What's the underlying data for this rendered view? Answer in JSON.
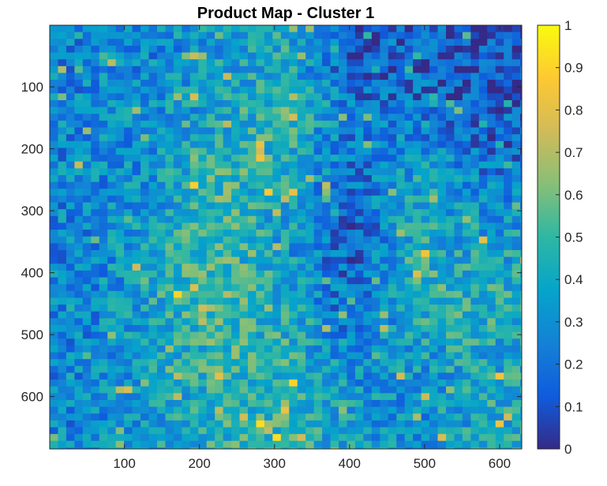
{
  "chart_data": {
    "type": "heatmap",
    "title": "Product Map - Cluster 1",
    "xlabel": "",
    "ylabel": "",
    "xlim": [
      0.5,
      629.5
    ],
    "ylim": [
      0.5,
      684.5
    ],
    "y_reversed": true,
    "x_ticks": [
      "100",
      "200",
      "300",
      "400",
      "500",
      "600"
    ],
    "x_tick_values": [
      100,
      200,
      300,
      400,
      500,
      600
    ],
    "y_ticks": [
      "100",
      "200",
      "300",
      "400",
      "500",
      "600"
    ],
    "y_tick_values": [
      100,
      200,
      300,
      400,
      500,
      600
    ],
    "colorbar": {
      "colormap": "parula",
      "clim": [
        0,
        1
      ],
      "ticks": [
        "0",
        "0.1",
        "0.2",
        "0.3",
        "0.4",
        "0.5",
        "0.6",
        "0.7",
        "0.8",
        "0.9",
        "1"
      ],
      "tick_values": [
        0,
        0.1,
        0.2,
        0.3,
        0.4,
        0.5,
        0.6,
        0.7,
        0.8,
        0.9,
        1
      ]
    },
    "grid": false,
    "colormap_stops": [
      "#352a87",
      "#0f5cdd",
      "#1481d6",
      "#06a4ca",
      "#2eb7a4",
      "#87bf77",
      "#d1bb59",
      "#fec832",
      "#f9fb0e"
    ],
    "region_levels": {
      "columns": [
        "1-90",
        "90-180",
        "180-270",
        "270-360",
        "360-450",
        "450-540",
        "540-629"
      ],
      "rows": [
        "1-100",
        "100-200",
        "200-300",
        "300-400",
        "400-500",
        "500-600",
        "600-684"
      ],
      "values": [
        [
          0.27,
          0.28,
          0.36,
          0.42,
          0.12,
          0.14,
          0.1
        ],
        [
          0.28,
          0.3,
          0.4,
          0.48,
          0.24,
          0.2,
          0.12
        ],
        [
          0.27,
          0.32,
          0.5,
          0.42,
          0.18,
          0.4,
          0.22
        ],
        [
          0.26,
          0.38,
          0.52,
          0.36,
          0.14,
          0.42,
          0.35
        ],
        [
          0.26,
          0.4,
          0.55,
          0.4,
          0.16,
          0.48,
          0.45
        ],
        [
          0.27,
          0.38,
          0.48,
          0.46,
          0.3,
          0.36,
          0.4
        ],
        [
          0.28,
          0.36,
          0.46,
          0.5,
          0.36,
          0.28,
          0.42
        ]
      ]
    }
  }
}
